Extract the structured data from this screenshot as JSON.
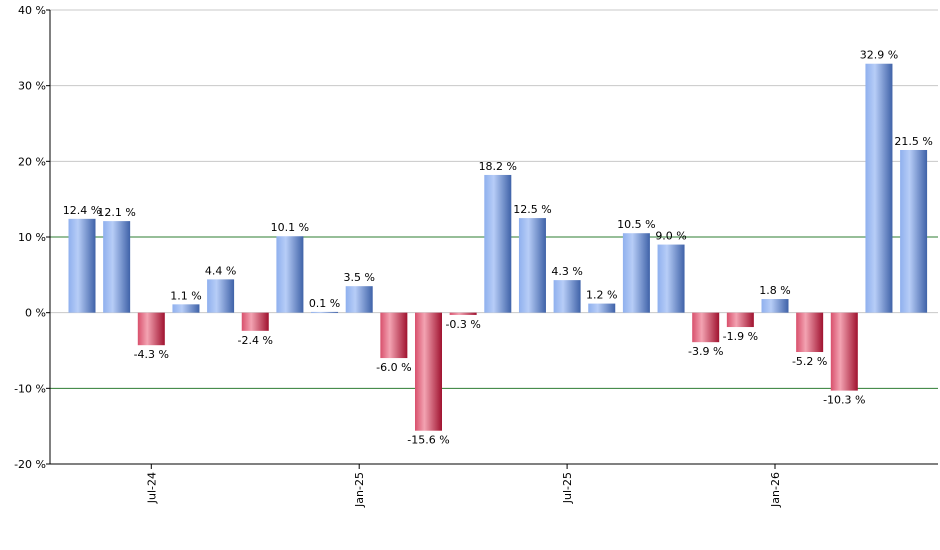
{
  "chart_data": {
    "type": "bar",
    "values": [
      12.4,
      12.1,
      -4.3,
      1.1,
      4.4,
      -2.4,
      10.1,
      0.1,
      3.5,
      -6.0,
      -15.6,
      -0.3,
      18.2,
      12.5,
      4.3,
      1.2,
      10.5,
      9.0,
      -3.9,
      -1.9,
      1.8,
      -5.2,
      -10.3,
      32.9,
      21.5
    ],
    "value_labels": [
      "12.4 %",
      "12.1 %",
      "-4.3 %",
      "1.1 %",
      "4.4 %",
      "-2.4 %",
      "10.1 %",
      "0.1 %",
      "3.5 %",
      "-6.0 %",
      "-15.6 %",
      "-0.3 %",
      "18.2 %",
      "12.5 %",
      "4.3 %",
      "1.2 %",
      "10.5 %",
      "9.0 %",
      "-3.9 %",
      "-1.9 %",
      "1.8 %",
      "-5.2 %",
      "-10.3 %",
      "32.9 %",
      "21.5 %"
    ],
    "x_tick_labels": [
      "Jul-24",
      "Jan-25",
      "Jul-25",
      "Jan-26"
    ],
    "x_tick_bar_index": [
      2,
      8,
      14,
      20
    ],
    "y_ticks": [
      -20,
      -10,
      0,
      10,
      20,
      30,
      40
    ],
    "y_tick_labels": [
      "-20 %",
      "-10 %",
      "0 %",
      "10 %",
      "20 %",
      "30 %",
      "40 %"
    ],
    "ylim": [
      -20,
      40
    ],
    "reference_lines": [
      10,
      -10
    ],
    "grid": true,
    "colors": {
      "positive_light": "#a9c4f5",
      "positive_dark": "#4a6fb8",
      "negative_light": "#f09aaa",
      "negative_dark": "#b3183a",
      "grid": "#c8c8c8",
      "reference": "#2e7d32",
      "axis": "#000000"
    }
  }
}
